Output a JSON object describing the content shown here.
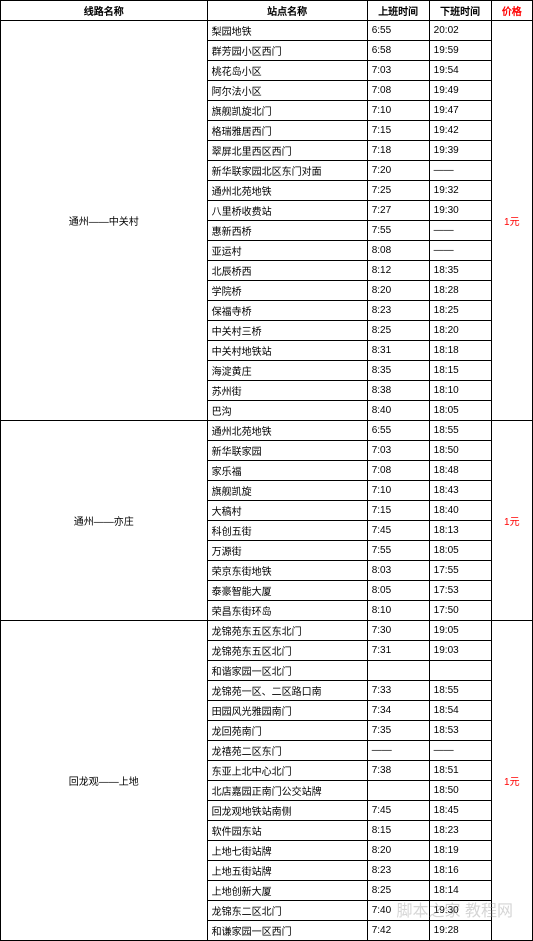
{
  "headers": {
    "route": "线路名称",
    "station": "站点名称",
    "start_time": "上班时间",
    "end_time": "下班时间",
    "price": "价格"
  },
  "routes": [
    {
      "name": "通州——中关村",
      "price": "1元",
      "stations": [
        {
          "name": "梨园地铁",
          "start": "6:55",
          "end": "20:02"
        },
        {
          "name": "群芳园小区西门",
          "start": "6:58",
          "end": "19:59"
        },
        {
          "name": "桃花岛小区",
          "start": "7:03",
          "end": "19:54"
        },
        {
          "name": "阿尔法小区",
          "start": "7:08",
          "end": "19:49"
        },
        {
          "name": "旗舰凯旋北门",
          "start": "7:10",
          "end": "19:47"
        },
        {
          "name": "格瑞雅居西门",
          "start": "7:15",
          "end": "19:42"
        },
        {
          "name": "翠屏北里西区西门",
          "start": "7:18",
          "end": "19:39"
        },
        {
          "name": "新华联家园北区东门对面",
          "start": "7:20",
          "end": "——"
        },
        {
          "name": "通州北苑地铁",
          "start": "7:25",
          "end": "19:32"
        },
        {
          "name": "八里桥收费站",
          "start": "7:27",
          "end": "19:30"
        },
        {
          "name": "惠新西桥",
          "start": "7:55",
          "end": "——"
        },
        {
          "name": "亚运村",
          "start": "8:08",
          "end": "——"
        },
        {
          "name": "北辰桥西",
          "start": "8:12",
          "end": "18:35"
        },
        {
          "name": "学院桥",
          "start": "8:20",
          "end": "18:28"
        },
        {
          "name": "保福寺桥",
          "start": "8:23",
          "end": "18:25"
        },
        {
          "name": "中关村三桥",
          "start": "8:25",
          "end": "18:20"
        },
        {
          "name": "中关村地铁站",
          "start": "8:31",
          "end": "18:18"
        },
        {
          "name": "海淀黄庄",
          "start": "8:35",
          "end": "18:15"
        },
        {
          "name": "苏州街",
          "start": "8:38",
          "end": "18:10"
        },
        {
          "name": "巴沟",
          "start": "8:40",
          "end": "18:05"
        }
      ]
    },
    {
      "name": "通州——亦庄",
      "price": "1元",
      "stations": [
        {
          "name": "通州北苑地铁",
          "start": "6:55",
          "end": "18:55"
        },
        {
          "name": "新华联家园",
          "start": "7:03",
          "end": "18:50"
        },
        {
          "name": "家乐福",
          "start": "7:08",
          "end": "18:48"
        },
        {
          "name": "旗舰凯旋",
          "start": "7:10",
          "end": "18:43"
        },
        {
          "name": "大稿村",
          "start": "7:15",
          "end": "18:40"
        },
        {
          "name": "科创五街",
          "start": "7:45",
          "end": "18:13"
        },
        {
          "name": "万源街",
          "start": "7:55",
          "end": "18:05"
        },
        {
          "name": "荣京东街地铁",
          "start": "8:03",
          "end": "17:55"
        },
        {
          "name": "泰豪智能大厦",
          "start": "8:05",
          "end": "17:53"
        },
        {
          "name": "荣昌东街环岛",
          "start": "8:10",
          "end": "17:50"
        }
      ]
    },
    {
      "name": "回龙观——上地",
      "price": "1元",
      "stations": [
        {
          "name": "龙锦苑东五区东北门",
          "start": "7:30",
          "end": "19:05"
        },
        {
          "name": "龙锦苑东五区北门",
          "start": "7:31",
          "end": "19:03"
        },
        {
          "name": "和谐家园一区北门",
          "start": "",
          "end": ""
        },
        {
          "name": "龙锦苑一区、二区路口南",
          "start": "7:33",
          "end": "18:55"
        },
        {
          "name": "田园风光雅园南门",
          "start": "7:34",
          "end": "18:54"
        },
        {
          "name": "龙回苑南门",
          "start": "7:35",
          "end": "18:53"
        },
        {
          "name": "龙禧苑二区东门",
          "start": "——",
          "end": "——"
        },
        {
          "name": "东亚上北中心北门",
          "start": "7:38",
          "end": "18:51"
        },
        {
          "name": "北店嘉园正南门公交站牌",
          "start": "",
          "end": "18:50"
        },
        {
          "name": "回龙观地铁站南侧",
          "start": "7:45",
          "end": "18:45"
        },
        {
          "name": "软件园东站",
          "start": "8:15",
          "end": "18:23"
        },
        {
          "name": "上地七街站牌",
          "start": "8:20",
          "end": "18:19"
        },
        {
          "name": "上地五街站牌",
          "start": "8:23",
          "end": "18:16"
        },
        {
          "name": "上地创新大厦",
          "start": "8:25",
          "end": "18:14"
        },
        {
          "name": "龙锦东二区北门",
          "start": "7:40",
          "end": "19:30"
        },
        {
          "name": "和谦家园一区西门",
          "start": "7:42",
          "end": "19:28"
        }
      ]
    }
  ],
  "watermark": "脚本之家 教程网"
}
